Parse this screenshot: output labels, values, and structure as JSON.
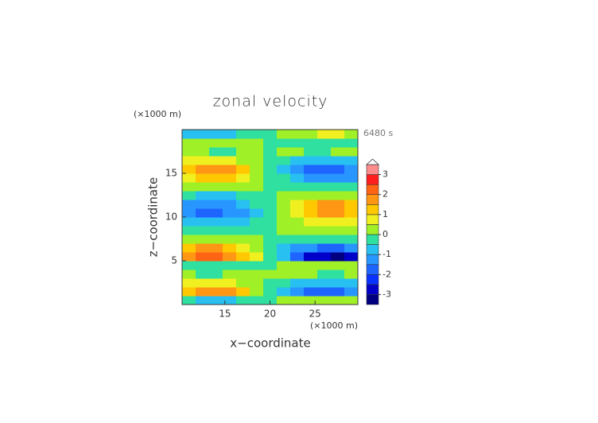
{
  "chart_data": {
    "type": "contour",
    "title": "zonal velocity",
    "x_label": "x−coordinate",
    "y_label": "z−coordinate",
    "x_unit": "(×1000 m)",
    "y_unit": "(×1000 m)",
    "time_label": "6480 s",
    "xlim": [
      10.25,
      29.75
    ],
    "ylim": [
      0,
      20
    ],
    "xticks": [
      15,
      20,
      25
    ],
    "yticks": [
      5,
      10,
      15
    ],
    "x": [
      11,
      12.5,
      14,
      15.5,
      17,
      18.5,
      20,
      21.5,
      23,
      24.5,
      26,
      27.5,
      29
    ],
    "z": [
      0.5,
      1.5,
      2.5,
      3.5,
      4.5,
      5.5,
      6.5,
      7.5,
      8.5,
      9.5,
      10.5,
      11.5,
      12.5,
      13.5,
      14.5,
      15.5,
      16.5,
      17.5,
      18.5,
      19.5
    ],
    "values": [
      [
        -0.4,
        -0.5,
        -0.5,
        -0.5,
        -0.3,
        -0.2,
        0,
        0.2,
        0.3,
        0.5,
        0.5,
        0.5,
        0.4
      ],
      [
        1.4,
        1.8,
        1.8,
        1.6,
        1.1,
        0.5,
        0,
        -0.5,
        -1.1,
        -1.6,
        -1.8,
        -1.8,
        -1.4
      ],
      [
        0.6,
        0.8,
        0.8,
        0.7,
        0.5,
        0.2,
        0,
        -0.2,
        -0.5,
        -0.7,
        -0.8,
        -0.8,
        -0.6
      ],
      [
        0.1,
        0,
        0,
        0.1,
        0.2,
        0.3,
        0.1,
        0.3,
        0.2,
        0.1,
        0,
        0,
        0.1
      ],
      [
        -0.2,
        -0.3,
        -0.3,
        -0.3,
        -0.2,
        -0.1,
        0,
        0.1,
        0.2,
        0.3,
        0.3,
        0.3,
        0.2
      ],
      [
        1.8,
        2.2,
        2.2,
        2,
        1.3,
        0.7,
        0,
        -0.7,
        -1.5,
        -2.5,
        -2.9,
        -3,
        -2.6
      ],
      [
        1.3,
        1.6,
        1.6,
        1.4,
        1,
        0.5,
        0,
        -0.5,
        -1,
        -1.4,
        -1.6,
        -1.6,
        -1.3
      ],
      [
        0.2,
        0.3,
        0.3,
        0.3,
        0.2,
        0.1,
        0,
        -0.1,
        -0.2,
        -0.3,
        -0.3,
        -0.3,
        -0.2
      ],
      [
        -0.2,
        -0.2,
        -0.2,
        -0.2,
        -0.1,
        -0.1,
        0,
        0.1,
        0.1,
        0.2,
        0.2,
        0.2,
        0.2
      ],
      [
        -0.6,
        -0.8,
        -0.8,
        -0.7,
        -0.5,
        -0.2,
        0,
        0.2,
        0.5,
        0.7,
        0.8,
        0.8,
        0.6
      ],
      [
        -1.3,
        -1.6,
        -1.6,
        -1.4,
        -1,
        -0.5,
        0,
        0.5,
        1,
        1.4,
        1.6,
        1.6,
        1.3
      ],
      [
        -1,
        -1.3,
        -1.3,
        -1.2,
        -0.8,
        -0.4,
        0,
        0.4,
        0.9,
        1.5,
        2,
        1.8,
        1.3
      ],
      [
        -0.4,
        -0.5,
        -0.5,
        -0.5,
        -0.3,
        -0.2,
        0,
        0.2,
        0.3,
        0.5,
        0.5,
        0.5,
        0.4
      ],
      [
        0.2,
        0.3,
        0.3,
        0.3,
        0.2,
        0.1,
        0,
        -0.1,
        -0.2,
        -0.3,
        -0.3,
        -0.3,
        -0.2
      ],
      [
        1,
        1.2,
        1.2,
        1.1,
        0.7,
        0.4,
        0,
        -0.4,
        -0.7,
        -1.1,
        -1.2,
        -1.2,
        -1
      ],
      [
        1.4,
        1.8,
        1.8,
        1.6,
        1.1,
        0.5,
        0,
        -0.5,
        -1.1,
        -1.6,
        -1.8,
        -1.8,
        -1.4
      ],
      [
        0.6,
        0.8,
        0.8,
        0.7,
        0.5,
        0.2,
        0,
        -0.2,
        -0.5,
        -0.7,
        -0.8,
        -0.8,
        -0.6
      ],
      [
        0.1,
        0.1,
        0,
        0,
        0.1,
        0.1,
        0,
        0.1,
        0.1,
        0,
        0,
        0.1,
        0.1
      ],
      [
        0.2,
        0.3,
        0.3,
        0.3,
        0.2,
        0.1,
        0,
        -0.1,
        -0.2,
        -0.3,
        -0.3,
        -0.3,
        -0.2
      ],
      [
        -0.5,
        -0.6,
        -0.6,
        -0.5,
        -0.4,
        -0.2,
        0,
        0.2,
        0.4,
        0.5,
        0.6,
        0.6,
        0.5
      ]
    ],
    "levels": [
      -3.5,
      -3,
      -2.5,
      -2,
      -1.5,
      -1,
      -0.5,
      0,
      0.5,
      1,
      1.5,
      2,
      2.5,
      3,
      3.5
    ],
    "colors": [
      "#000080",
      "#0000c8",
      "#0a32ff",
      "#1e64ff",
      "#2896ff",
      "#28c0f0",
      "#30e0a0",
      "#a0f028",
      "#f0f020",
      "#ffc800",
      "#ff9614",
      "#ff6414",
      "#ff1e1e",
      "#ff8c8c"
    ],
    "colorbar_ticks": [
      -3,
      -2,
      -1,
      0,
      1,
      2,
      3
    ]
  }
}
